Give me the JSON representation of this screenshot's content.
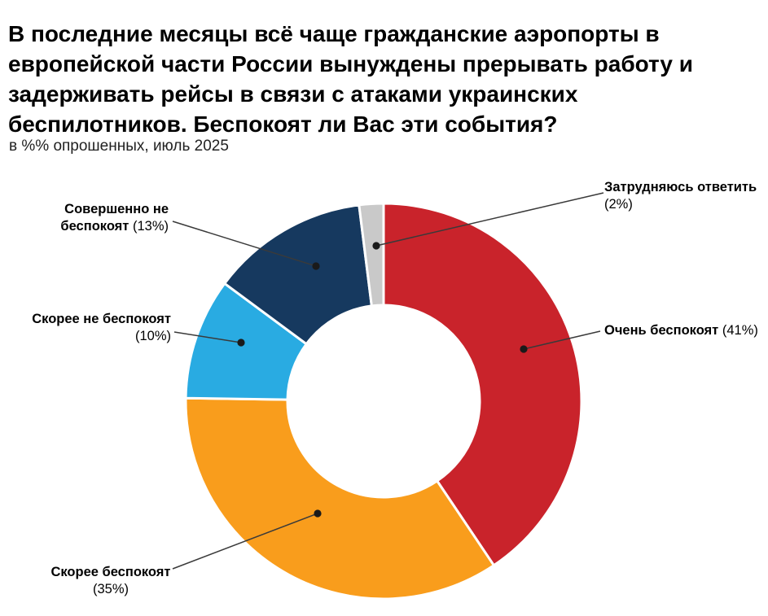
{
  "header": {
    "title": "В последние месяцы всё чаще гражданские аэропорты в европейской части России вынуждены прерывать работу и задерживать рейсы в связи с атаками украинских беспилотников. Беспокоят ли Вас эти события?",
    "subtitle": "в %% опрошенных, июль 2025"
  },
  "chart_data": {
    "type": "pie",
    "subtype": "donut",
    "title": "В последние месяцы всё чаще гражданские аэропорты в европейской части России вынуждены прерывать работу и задерживать рейсы в связи с атаками украинских беспилотников. Беспокоят ли Вас эти события?",
    "subtitle": "в %% опрошенных, июль 2025",
    "unit": "percent",
    "start_angle_deg": 0,
    "direction": "clockwise",
    "legend_position": "callout-labels",
    "segments": [
      {
        "label": "Очень беспокоят",
        "value": 41,
        "color": "#c9232b"
      },
      {
        "label": "Скорее беспокоят",
        "value": 35,
        "color": "#f99d1c"
      },
      {
        "label": "Скорее не беспокоят",
        "value": 10,
        "color": "#29abe2"
      },
      {
        "label": "Совершенно не беспокоят",
        "value": 13,
        "color": "#16395f"
      },
      {
        "label": "Затрудняюсь ответить",
        "value": 2,
        "color": "#c9c9c9"
      }
    ]
  },
  "callouts": [
    {
      "rows": [
        {
          "b": "Очень беспокоят",
          "r": " (41%)"
        }
      ]
    },
    {
      "rows": [
        {
          "b": "Скорее беспокоят",
          "r": ""
        },
        {
          "b": "",
          "r": "(35%)"
        }
      ]
    },
    {
      "rows": [
        {
          "b": "Скорее не беспокоят",
          "r": ""
        },
        {
          "b": "",
          "r": "(10%)"
        }
      ]
    },
    {
      "rows": [
        {
          "b": "Совершенно не",
          "r": ""
        },
        {
          "b": "беспокоят",
          "r": " (13%)"
        }
      ]
    },
    {
      "rows": [
        {
          "b": "Затрудняюсь ответить",
          "r": ""
        },
        {
          "b": "",
          "r": "(2%)"
        }
      ]
    }
  ],
  "style": {
    "leader_line_color": "#3a3a3a",
    "leader_dot_color": "#1a1a1a",
    "segment_gap_color": "#ffffff"
  }
}
